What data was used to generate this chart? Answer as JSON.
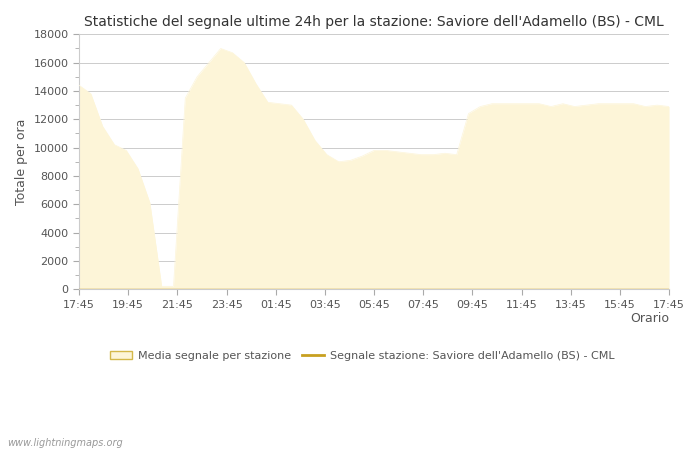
{
  "title": "Statistiche del segnale ultime 24h per la stazione: Saviore dell'Adamello (BS) - CML",
  "xlabel": "Orario",
  "ylabel": "Totale per ora",
  "x_labels": [
    "17:45",
    "19:45",
    "21:45",
    "23:45",
    "01:45",
    "03:45",
    "05:45",
    "07:45",
    "09:45",
    "11:45",
    "13:45",
    "15:45",
    "17:45"
  ],
  "ylim": [
    0,
    18000
  ],
  "yticks_major": [
    0,
    2000,
    4000,
    6000,
    8000,
    10000,
    12000,
    14000,
    16000,
    18000
  ],
  "fill_color": "#fdf5d8",
  "line_color": "#c8a020",
  "background_color": "#ffffff",
  "grid_color": "#cccccc",
  "watermark": "www.lightningmaps.org",
  "legend_fill_label": "Media segnale per stazione",
  "legend_line_label": "Segnale stazione: Saviore dell'Adamello (BS) - CML",
  "y_values": [
    14400,
    13800,
    11500,
    10200,
    9800,
    8500,
    6100,
    200,
    200,
    13500,
    15000,
    16000,
    17000,
    16700,
    16000,
    14500,
    13200,
    13100,
    13000,
    12000,
    10500,
    9500,
    9000,
    9100,
    9400,
    9800,
    9800,
    9700,
    9600,
    9500,
    9500,
    9600,
    9500,
    12400,
    12900,
    13100,
    13100,
    13100,
    13100,
    13100,
    12900,
    13100,
    12900,
    13000,
    13100,
    13100,
    13100,
    13100,
    12900,
    13000,
    12900
  ]
}
